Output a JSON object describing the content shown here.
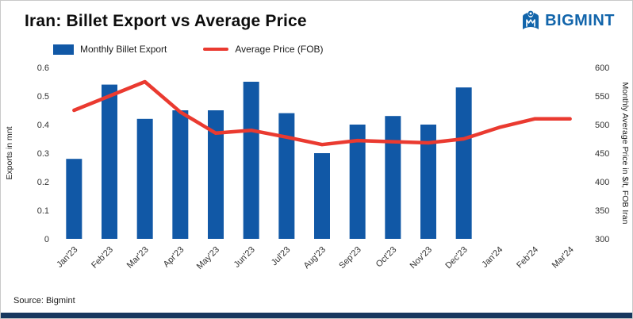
{
  "header": {
    "title": "Iran: Billet Export vs Average Price",
    "logo_text": "BIGMINT"
  },
  "legend": [
    {
      "label": "Monthly Billet Export",
      "type": "bar"
    },
    {
      "label": "Average Price (FOB)",
      "type": "line"
    }
  ],
  "footer": {
    "source": "Source: Bigmint"
  },
  "colors": {
    "bar": "#1158a6",
    "line": "#ea3a30",
    "brand": "#1265ab",
    "bottom_strip": "#17375e"
  },
  "chart_data": {
    "type": "bar+line",
    "title": "Iran: Billet Export vs Average Price",
    "categories": [
      "Jan'23",
      "Feb'23",
      "Mar'23",
      "Apr'23",
      "May'23",
      "Jun'23",
      "Jul'23",
      "Aug'23",
      "Sep'23",
      "Oct'23",
      "Nov'23",
      "Dec'23",
      "Jan'24",
      "Feb'24",
      "Mar'24"
    ],
    "series": [
      {
        "name": "Monthly Billet Export",
        "type": "bar",
        "axis": "left",
        "values": [
          0.28,
          0.54,
          0.42,
          0.45,
          0.45,
          0.55,
          0.44,
          0.3,
          0.4,
          0.43,
          0.4,
          0.53,
          null,
          null,
          null
        ]
      },
      {
        "name": "Average Price (FOB)",
        "type": "line",
        "axis": "right",
        "values": [
          525,
          550,
          575,
          522,
          485,
          490,
          478,
          465,
          472,
          470,
          468,
          475,
          495,
          510,
          510
        ]
      }
    ],
    "left_axis": {
      "label": "Exports in mnt",
      "min": 0,
      "max": 0.6,
      "step": 0.1
    },
    "right_axis": {
      "label": "Monthly Average Price in $/t, FOB Iran",
      "min": 300,
      "max": 600,
      "step": 50
    },
    "grid": false,
    "legend_position": "top-left"
  }
}
